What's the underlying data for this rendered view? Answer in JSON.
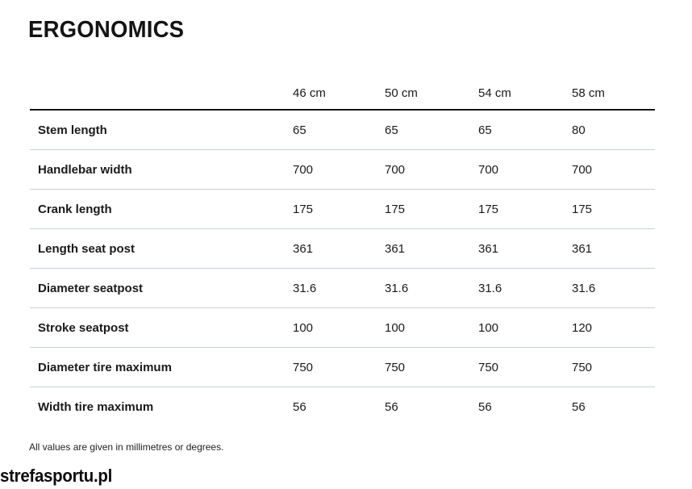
{
  "page": {
    "title": "ERGONOMICS",
    "footnote": "All values are given in millimetres or degrees.",
    "watermark": "strefasportu.pl"
  },
  "table": {
    "corner_label": "",
    "columns": [
      "46 cm",
      "50 cm",
      "54 cm",
      "58 cm"
    ],
    "rows": [
      {
        "label": "Stem length",
        "values": [
          "65",
          "65",
          "65",
          "80"
        ]
      },
      {
        "label": "Handlebar width",
        "values": [
          "700",
          "700",
          "700",
          "700"
        ]
      },
      {
        "label": "Crank length",
        "values": [
          "175",
          "175",
          "175",
          "175"
        ]
      },
      {
        "label": "Length seat post",
        "values": [
          "361",
          "361",
          "361",
          "361"
        ]
      },
      {
        "label": "Diameter seatpost",
        "values": [
          "31.6",
          "31.6",
          "31.6",
          "31.6"
        ]
      },
      {
        "label": "Stroke seatpost",
        "values": [
          "100",
          "100",
          "100",
          "120"
        ]
      },
      {
        "label": "Diameter tire maximum",
        "values": [
          "750",
          "750",
          "750",
          "750"
        ]
      },
      {
        "label": "Width tire maximum",
        "values": [
          "56",
          "56",
          "56",
          "56"
        ]
      }
    ]
  },
  "colors": {
    "text": "#1a1a1a",
    "header_rule": "#161616",
    "row_divider": "#c9d0d6",
    "background": "#ffffff"
  }
}
